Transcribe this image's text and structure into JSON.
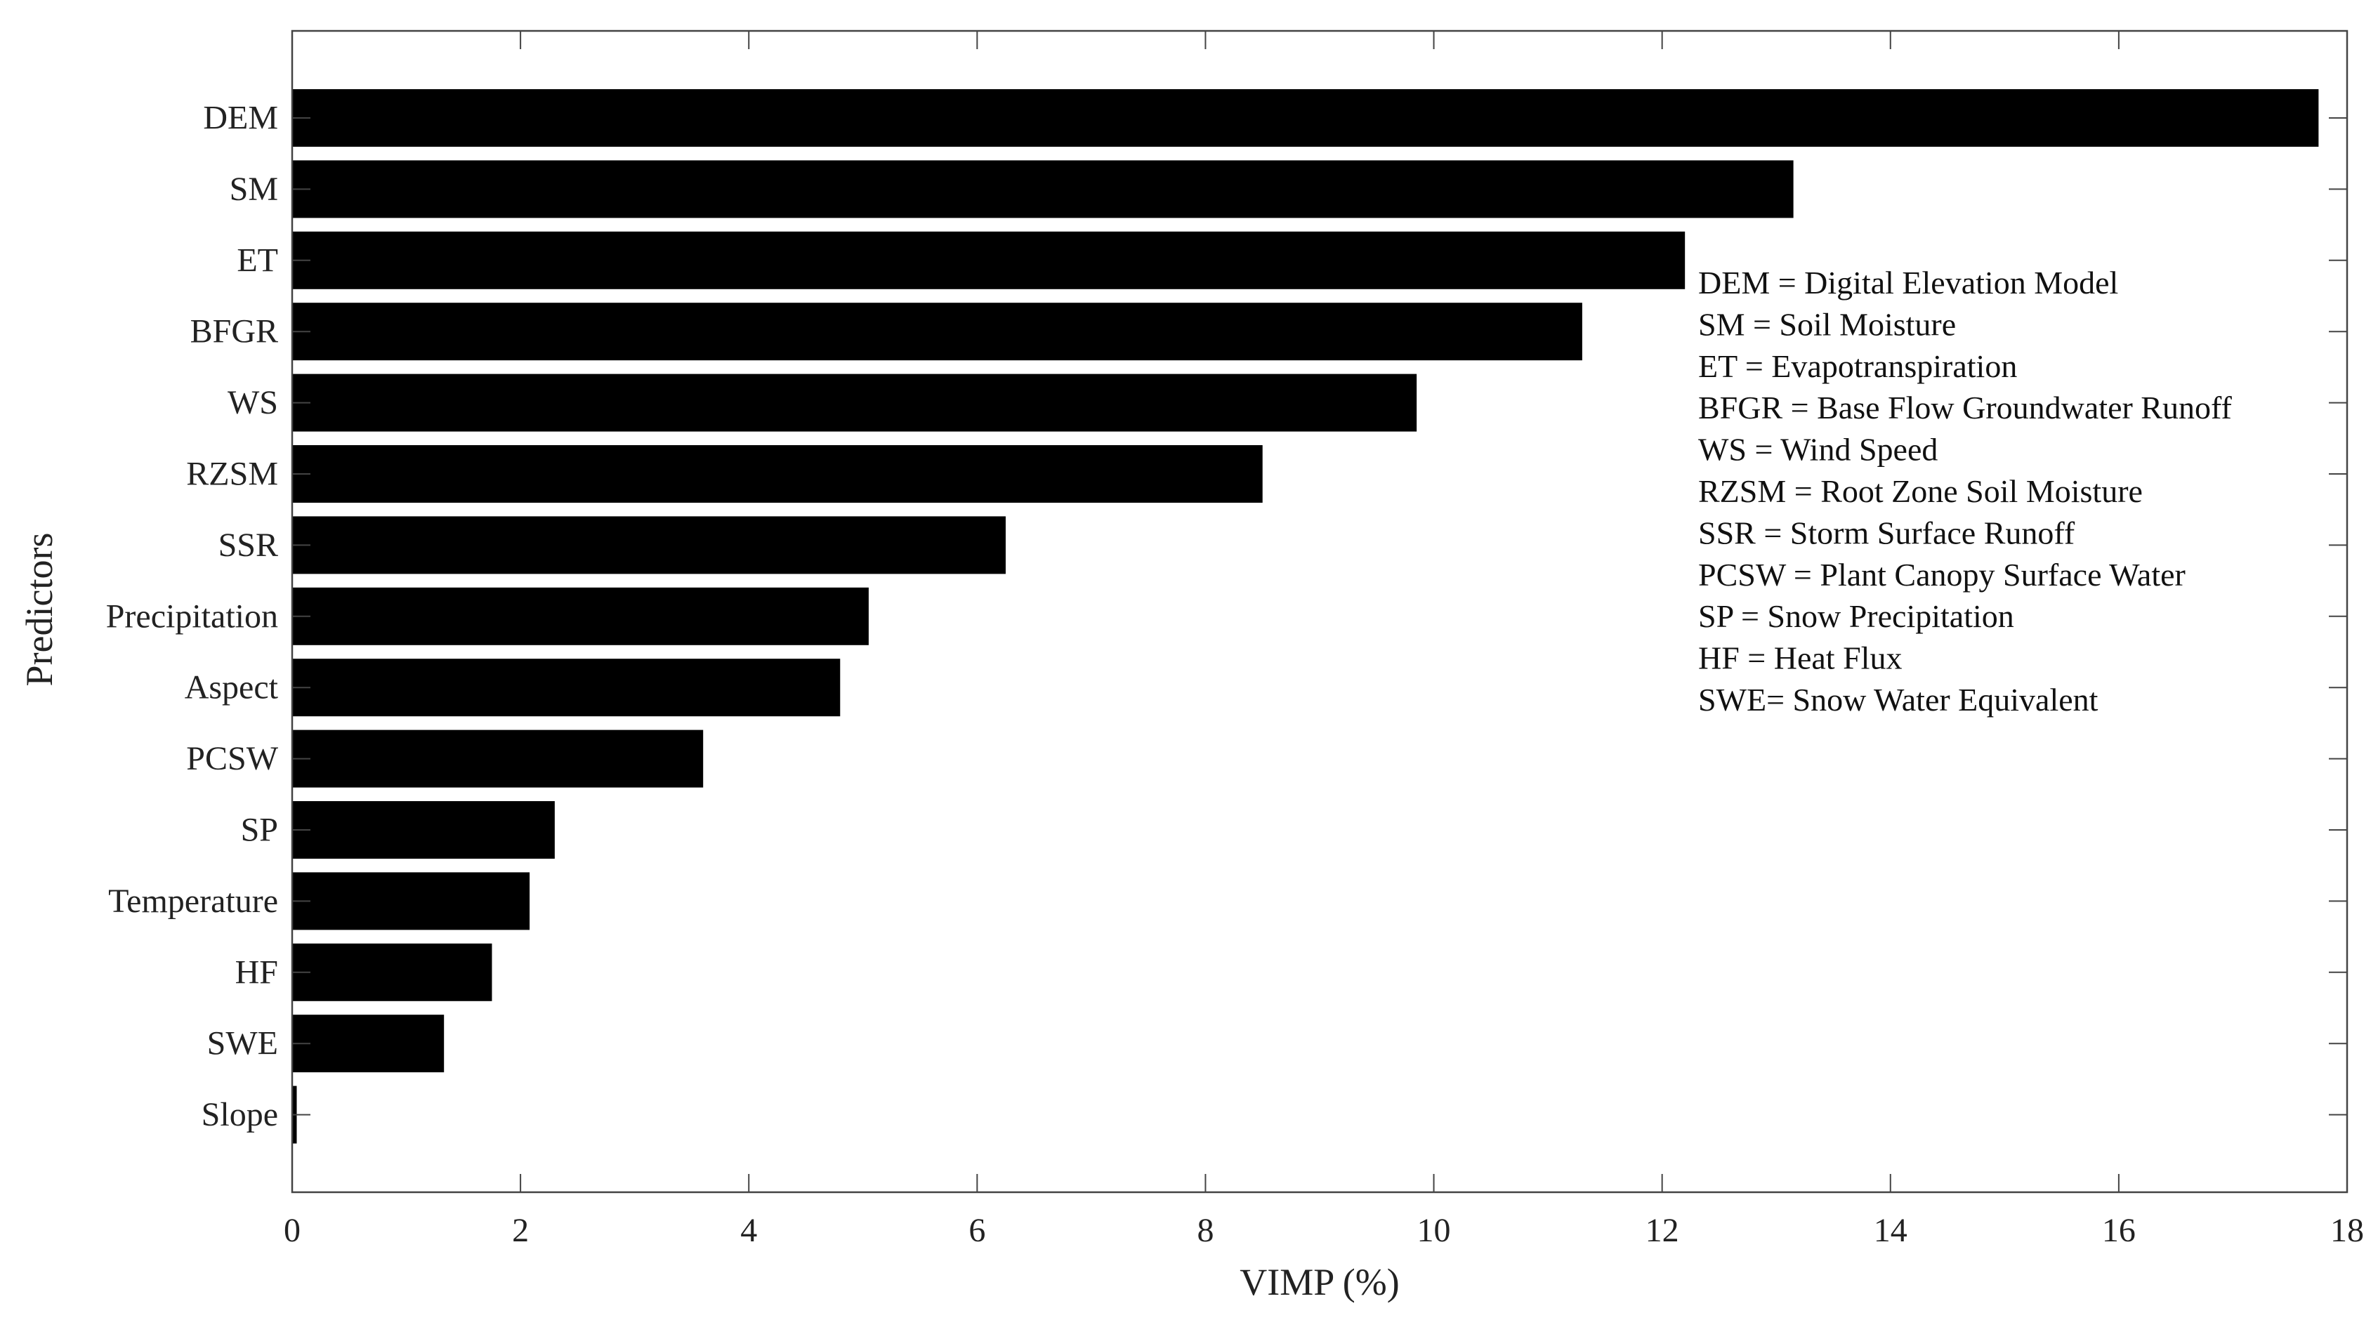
{
  "chart_data": {
    "type": "bar",
    "orientation": "horizontal",
    "xlabel": "VIMP (%)",
    "ylabel": "Predictors",
    "xlim": [
      0,
      18
    ],
    "xticks": [
      0,
      2,
      4,
      6,
      8,
      10,
      12,
      14,
      16,
      18
    ],
    "categories": [
      "DEM",
      "SM",
      "ET",
      "BFGR",
      "WS",
      "RZSM",
      "SSR",
      "Precipitation",
      "Aspect",
      "PCSW",
      "SP",
      "Temperature",
      "HF",
      "SWE",
      "Slope"
    ],
    "values": [
      17.75,
      13.15,
      12.2,
      11.3,
      9.85,
      8.5,
      6.25,
      5.05,
      4.8,
      3.6,
      2.3,
      2.08,
      1.75,
      1.33,
      0.04
    ],
    "bar_color": "#000000",
    "grid": false,
    "annotations": [
      "DEM = Digital Elevation Model",
      "SM = Soil Moisture",
      "ET = Evapotranspiration",
      "BFGR = Base Flow Groundwater Runoff",
      "WS = Wind Speed",
      "RZSM = Root Zone Soil Moisture",
      "SSR = Storm Surface Runoff",
      "PCSW = Plant Canopy Surface Water",
      "SP = Snow Precipitation",
      "HF = Heat Flux",
      "SWE= Snow Water Equivalent"
    ]
  }
}
